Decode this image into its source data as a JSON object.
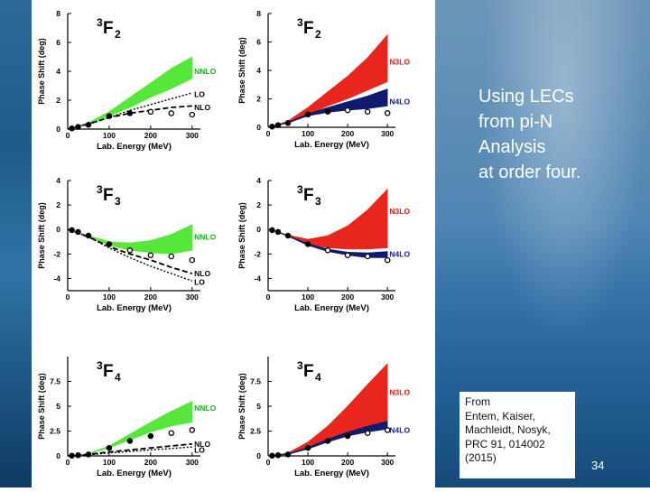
{
  "slide": {
    "title_lines": [
      "Using LECs",
      "from pi-N",
      "Analysis",
      "at order four."
    ],
    "reference_lines": [
      "From",
      "Entem, Kaiser,",
      "Machleidt, Nosyk,",
      "PRC 91, 014002",
      "(2015)"
    ],
    "page_number": "34"
  },
  "colors": {
    "nnlo": "#55e83a",
    "n3lo": "#e8261e",
    "n4lo": "#101b6e",
    "band_label_nnlo": "#22aa22",
    "band_label_n3lo": "#e02020",
    "band_label_n4lo": "#1a237e"
  },
  "chart_data": [
    {
      "type": "line",
      "wave_sup": "3",
      "wave_letter": "F",
      "wave_sub": "2",
      "xlabel": "Lab. Energy (MeV)",
      "ylabel": "Phase Shift (deg)",
      "xlim": [
        0,
        320
      ],
      "ylim": [
        0,
        8
      ],
      "x_ticks": [
        0,
        100,
        200,
        300
      ],
      "x_tick_labels": [
        "0",
        "100",
        "200",
        "300"
      ],
      "y_ticks": [
        0,
        2,
        4,
        6,
        8
      ],
      "y_tick_labels": [
        "0",
        "2",
        "4",
        "6",
        "8"
      ],
      "bands": [
        {
          "name": "NNLO",
          "color": "nnlo",
          "x": [
            10,
            50,
            100,
            150,
            200,
            250,
            300
          ],
          "low": [
            0.05,
            0.4,
            0.9,
            1.5,
            2.2,
            2.8,
            3.5
          ],
          "high": [
            0.06,
            0.45,
            1.2,
            2.2,
            3.2,
            4.2,
            5.0
          ]
        }
      ],
      "lines": [
        {
          "name": "LO",
          "style": "dotted",
          "x": [
            0,
            50,
            100,
            150,
            200,
            250,
            300
          ],
          "y": [
            0,
            0.35,
            0.8,
            1.3,
            1.7,
            2.1,
            2.5
          ]
        },
        {
          "name": "NLO",
          "style": "dashed",
          "x": [
            0,
            50,
            100,
            150,
            200,
            250,
            300
          ],
          "y": [
            0,
            0.35,
            0.8,
            1.1,
            1.3,
            1.5,
            1.6
          ]
        }
      ],
      "points": {
        "x": [
          10,
          25,
          50,
          100,
          150,
          200,
          250,
          300
        ],
        "y": [
          0.05,
          0.15,
          0.3,
          0.9,
          1.1,
          1.2,
          1.1,
          1.0
        ],
        "open": [
          false,
          false,
          false,
          false,
          false,
          true,
          true,
          true
        ]
      },
      "labels": [
        {
          "text": "NNLO",
          "color": "band_label_nnlo",
          "x": 305,
          "y": 4.0
        },
        {
          "text": "LO",
          "color": "#000000",
          "x": 305,
          "y": 2.4
        },
        {
          "text": "NLO",
          "color": "#000000",
          "x": 305,
          "y": 1.5
        }
      ]
    },
    {
      "type": "line",
      "wave_sup": "3",
      "wave_letter": "F",
      "wave_sub": "2",
      "xlabel": "Lab. Energy (MeV)",
      "ylabel": "Phase Shift (deg)",
      "xlim": [
        0,
        320
      ],
      "ylim": [
        0,
        8
      ],
      "x_ticks": [
        0,
        100,
        200,
        300
      ],
      "x_tick_labels": [
        "0",
        "100",
        "200",
        "300"
      ],
      "y_ticks": [
        0,
        2,
        4,
        6,
        8
      ],
      "y_tick_labels": [
        "0",
        "2",
        "4",
        "6",
        "8"
      ],
      "bands": [
        {
          "name": "N3LO",
          "color": "n3lo",
          "x": [
            10,
            50,
            100,
            150,
            200,
            250,
            300
          ],
          "low": [
            0.05,
            0.35,
            0.9,
            1.5,
            2.0,
            2.6,
            3.2
          ],
          "high": [
            0.06,
            0.45,
            1.4,
            2.5,
            3.6,
            4.9,
            6.5
          ]
        },
        {
          "name": "N4LO",
          "color": "n4lo",
          "x": [
            10,
            50,
            100,
            150,
            200,
            250,
            300
          ],
          "low": [
            0.05,
            0.3,
            0.8,
            1.05,
            1.2,
            1.3,
            1.5
          ],
          "high": [
            0.06,
            0.35,
            0.95,
            1.4,
            1.8,
            2.2,
            2.7
          ]
        }
      ],
      "lines": [],
      "points": {
        "x": [
          10,
          25,
          50,
          100,
          150,
          200,
          250,
          300
        ],
        "y": [
          0.05,
          0.15,
          0.3,
          0.9,
          1.1,
          1.2,
          1.1,
          1.0
        ],
        "open": [
          false,
          false,
          false,
          false,
          false,
          true,
          true,
          true
        ]
      },
      "labels": [
        {
          "text": "N3LO",
          "color": "band_label_n3lo",
          "x": 305,
          "y": 4.6
        },
        {
          "text": "N4LO",
          "color": "band_label_n4lo",
          "x": 305,
          "y": 1.8
        }
      ]
    },
    {
      "type": "line",
      "wave_sup": "3",
      "wave_letter": "F",
      "wave_sub": "3",
      "xlabel": "Lab. Energy (MeV)",
      "ylabel": "Phase Shift (deg)",
      "xlim": [
        0,
        320
      ],
      "ylim": [
        -5,
        4
      ],
      "x_ticks": [
        0,
        100,
        200,
        300
      ],
      "x_tick_labels": [
        "0",
        "100",
        "200",
        "300"
      ],
      "y_ticks": [
        -4,
        -2,
        0,
        2,
        4
      ],
      "y_tick_labels": [
        "-4",
        "-2",
        "0",
        "2",
        "4"
      ],
      "bands": [
        {
          "name": "NNLO",
          "color": "nnlo",
          "x": [
            10,
            50,
            100,
            150,
            200,
            250,
            300
          ],
          "low": [
            -0.05,
            -0.6,
            -1.3,
            -1.7,
            -1.9,
            -2.0,
            -1.7
          ],
          "high": [
            -0.04,
            -0.5,
            -1.0,
            -1.1,
            -0.9,
            -0.4,
            0.4
          ]
        }
      ],
      "lines": [
        {
          "name": "NLO",
          "style": "dashed",
          "x": [
            0,
            50,
            100,
            150,
            200,
            250,
            300
          ],
          "y": [
            0,
            -0.6,
            -1.4,
            -2.0,
            -2.5,
            -3.1,
            -3.6
          ]
        },
        {
          "name": "LO",
          "style": "dotted",
          "x": [
            0,
            50,
            100,
            150,
            200,
            250,
            300
          ],
          "y": [
            0,
            -0.6,
            -1.5,
            -2.3,
            -3.0,
            -3.6,
            -4.2
          ]
        }
      ],
      "points": {
        "x": [
          10,
          25,
          50,
          100,
          150,
          200,
          250,
          300
        ],
        "y": [
          -0.05,
          -0.2,
          -0.5,
          -1.2,
          -1.7,
          -2.1,
          -2.2,
          -2.5
        ],
        "open": [
          false,
          false,
          false,
          false,
          true,
          true,
          true,
          true
        ]
      },
      "labels": [
        {
          "text": "NNLO",
          "color": "band_label_nnlo",
          "x": 305,
          "y": -0.6
        },
        {
          "text": "NLO",
          "color": "#000000",
          "x": 305,
          "y": -3.6
        },
        {
          "text": "LO",
          "color": "#000000",
          "x": 305,
          "y": -4.3
        }
      ]
    },
    {
      "type": "line",
      "wave_sup": "3",
      "wave_letter": "F",
      "wave_sub": "3",
      "xlabel": "Lab. Energy (MeV)",
      "ylabel": "Phase Shift (deg)",
      "xlim": [
        0,
        320
      ],
      "ylim": [
        -5,
        4
      ],
      "x_ticks": [
        0,
        100,
        200,
        300
      ],
      "x_tick_labels": [
        "0",
        "100",
        "200",
        "300"
      ],
      "y_ticks": [
        -4,
        -2,
        0,
        2,
        4
      ],
      "y_tick_labels": [
        "-4",
        "-2",
        "0",
        "2",
        "4"
      ],
      "bands": [
        {
          "name": "N3LO",
          "color": "n3lo",
          "x": [
            10,
            50,
            100,
            150,
            200,
            250,
            300
          ],
          "low": [
            -0.05,
            -0.55,
            -1.2,
            -1.5,
            -1.6,
            -1.6,
            -1.5
          ],
          "high": [
            -0.04,
            -0.45,
            -0.8,
            -0.5,
            0.3,
            1.6,
            3.3
          ]
        },
        {
          "name": "N4LO",
          "color": "n4lo",
          "x": [
            10,
            50,
            100,
            150,
            200,
            250,
            300
          ],
          "low": [
            -0.05,
            -0.55,
            -1.3,
            -1.8,
            -2.1,
            -2.3,
            -2.3
          ],
          "high": [
            -0.04,
            -0.5,
            -1.15,
            -1.6,
            -1.85,
            -1.9,
            -1.8
          ]
        }
      ],
      "lines": [],
      "points": {
        "x": [
          10,
          25,
          50,
          100,
          150,
          200,
          250,
          300
        ],
        "y": [
          -0.05,
          -0.2,
          -0.5,
          -1.2,
          -1.7,
          -2.1,
          -2.2,
          -2.5
        ],
        "open": [
          false,
          false,
          false,
          false,
          true,
          true,
          true,
          true
        ]
      },
      "labels": [
        {
          "text": "N3LO",
          "color": "band_label_n3lo",
          "x": 305,
          "y": 1.5
        },
        {
          "text": "N4LO",
          "color": "band_label_n4lo",
          "x": 305,
          "y": -2.0
        }
      ]
    },
    {
      "type": "line",
      "wave_sup": "3",
      "wave_letter": "F",
      "wave_sub": "4",
      "xlabel": "Lab. Energy (MeV)",
      "ylabel": "Phase Shift (deg)",
      "xlim": [
        0,
        320
      ],
      "ylim": [
        0,
        10
      ],
      "x_ticks": [
        0,
        100,
        200,
        300
      ],
      "x_tick_labels": [
        "0",
        "100",
        "200",
        "300"
      ],
      "y_ticks": [
        0,
        2.5,
        5,
        7.5
      ],
      "y_tick_labels": [
        "0",
        "2.5",
        "5",
        "7.5"
      ],
      "bands": [
        {
          "name": "NNLO",
          "color": "nnlo",
          "x": [
            10,
            50,
            100,
            150,
            200,
            250,
            300
          ],
          "low": [
            0.02,
            0.2,
            0.8,
            1.6,
            2.4,
            3.0,
            3.4
          ],
          "high": [
            0.03,
            0.25,
            1.0,
            2.2,
            3.4,
            4.5,
            5.5
          ]
        }
      ],
      "lines": [
        {
          "name": "NLO",
          "style": "dashed",
          "x": [
            0,
            50,
            100,
            150,
            200,
            250,
            300
          ],
          "y": [
            0,
            0.15,
            0.4,
            0.6,
            0.8,
            1.0,
            1.2
          ]
        },
        {
          "name": "LO",
          "style": "dotted",
          "x": [
            0,
            50,
            100,
            150,
            200,
            250,
            300
          ],
          "y": [
            0,
            0.1,
            0.3,
            0.45,
            0.6,
            0.75,
            0.9
          ]
        }
      ],
      "points": {
        "x": [
          10,
          25,
          50,
          100,
          150,
          200,
          250,
          300
        ],
        "y": [
          0.02,
          0.06,
          0.15,
          0.8,
          1.5,
          2.0,
          2.3,
          2.6
        ],
        "open": [
          false,
          false,
          false,
          false,
          false,
          false,
          true,
          true
        ]
      },
      "labels": [
        {
          "text": "NNLO",
          "color": "band_label_nnlo",
          "x": 305,
          "y": 4.8
        },
        {
          "text": "NLO",
          "color": "#000000",
          "x": 305,
          "y": 1.2
        },
        {
          "text": "LO",
          "color": "#000000",
          "x": 305,
          "y": 0.6
        }
      ]
    },
    {
      "type": "line",
      "wave_sup": "3",
      "wave_letter": "F",
      "wave_sub": "4",
      "xlabel": "Lab. Energy (MeV)",
      "ylabel": "Phase Shift (deg)",
      "xlim": [
        0,
        320
      ],
      "ylim": [
        0,
        10
      ],
      "x_ticks": [
        0,
        100,
        200,
        300
      ],
      "x_tick_labels": [
        "0",
        "100",
        "200",
        "300"
      ],
      "y_ticks": [
        0,
        2.5,
        5,
        7.5
      ],
      "y_tick_labels": [
        "0",
        "2.5",
        "5",
        "7.5"
      ],
      "bands": [
        {
          "name": "N3LO",
          "color": "n3lo",
          "x": [
            10,
            50,
            100,
            150,
            200,
            250,
            300
          ],
          "low": [
            0.02,
            0.2,
            0.7,
            1.4,
            2.0,
            2.4,
            2.9
          ],
          "high": [
            0.03,
            0.3,
            1.4,
            3.0,
            5.0,
            7.2,
            9.3
          ]
        },
        {
          "name": "N4LO",
          "color": "n4lo",
          "x": [
            10,
            50,
            100,
            150,
            200,
            250,
            300
          ],
          "low": [
            0.02,
            0.15,
            0.7,
            1.4,
            2.0,
            2.4,
            2.7
          ],
          "high": [
            0.03,
            0.2,
            0.85,
            1.7,
            2.4,
            3.0,
            3.5
          ]
        }
      ],
      "lines": [],
      "points": {
        "x": [
          10,
          25,
          50,
          100,
          150,
          200,
          250,
          300
        ],
        "y": [
          0.02,
          0.06,
          0.15,
          0.8,
          1.5,
          2.0,
          2.3,
          2.6
        ],
        "open": [
          false,
          false,
          false,
          false,
          false,
          false,
          true,
          true
        ]
      },
      "labels": [
        {
          "text": "N3LO",
          "color": "band_label_n3lo",
          "x": 305,
          "y": 6.4
        },
        {
          "text": "N4LO",
          "color": "band_label_n4lo",
          "x": 305,
          "y": 2.6
        }
      ]
    }
  ]
}
